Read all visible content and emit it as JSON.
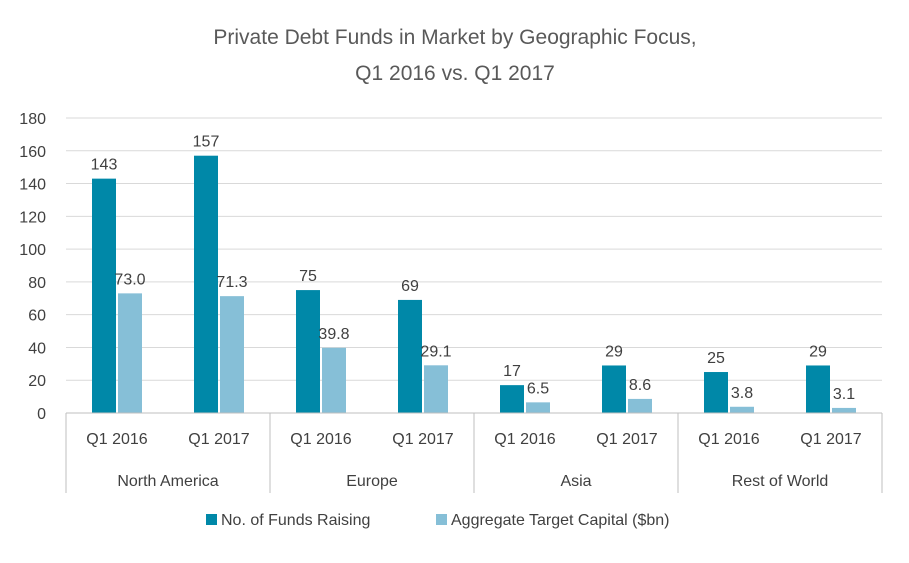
{
  "chart_data": {
    "type": "bar",
    "title_lines": [
      "Private Debt Funds in Market by Geographic Focus,",
      "Q1 2016 vs. Q1 2017"
    ],
    "groups": [
      {
        "name": "North America",
        "categories": [
          "Q1 2016",
          "Q1 2017"
        ]
      },
      {
        "name": "Europe",
        "categories": [
          "Q1 2016",
          "Q1 2017"
        ]
      },
      {
        "name": "Asia",
        "categories": [
          "Q1 2016",
          "Q1 2017"
        ]
      },
      {
        "name": "Rest of World",
        "categories": [
          "Q1 2016",
          "Q1 2017"
        ]
      }
    ],
    "series": [
      {
        "name": "No. of Funds Raising",
        "color": "#0088A8",
        "values": [
          143,
          157,
          75,
          69,
          17,
          29,
          25,
          29
        ],
        "labels": [
          "143",
          "157",
          "75",
          "69",
          "17",
          "29",
          "25",
          "29"
        ]
      },
      {
        "name": "Aggregate Target Capital ($bn)",
        "color": "#86BFD7",
        "values": [
          73.0,
          71.3,
          39.8,
          29.1,
          6.5,
          8.6,
          3.8,
          3.1
        ],
        "labels": [
          "73.0",
          "71.3",
          "39.8",
          "29.1",
          "6.5",
          "8.6",
          "3.8",
          "3.1"
        ]
      }
    ],
    "ylim": [
      0,
      180
    ],
    "yticks": [
      0,
      20,
      40,
      60,
      80,
      100,
      120,
      140,
      160,
      180
    ],
    "grid": true,
    "legend": "bottom"
  }
}
